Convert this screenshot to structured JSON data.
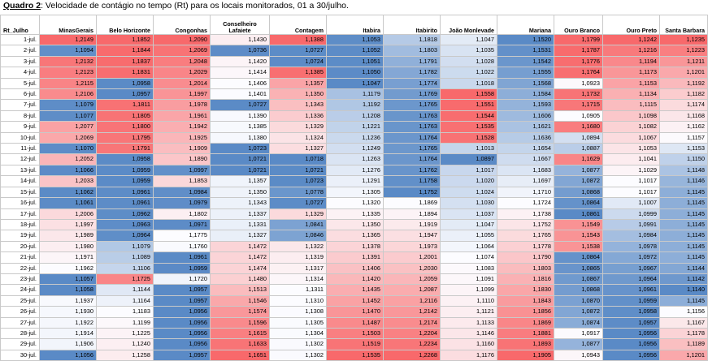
{
  "title": {
    "prefix": "Quadro 2",
    "text": ": Velocidade de contágio no tempo (Rt) para os locais monitorados,  01 a 30/julho."
  },
  "table": {
    "row_header": "Rt_Julho",
    "columns": [
      "MinasGerais",
      "Belo Horizonte",
      "Congonhas",
      "Conselheiro Lafaiete",
      "Contagem",
      "Itabira",
      "Itabirito",
      "João Monlevade",
      "Mariana",
      "Ouro Branco",
      "Ouro Preto",
      "Santa Barbara"
    ],
    "rows": [
      {
        "label": "1-jul.",
        "values": [
          "1,2149",
          "1,1852",
          "1,2090",
          "1,1430",
          "1,1388",
          "1,1053",
          "1,1818",
          "1,1047",
          "1,1520",
          "1,1799",
          "1,1242",
          "1,1235"
        ]
      },
      {
        "label": "2-jul.",
        "values": [
          "1,1094",
          "1,1844",
          "1,2069",
          "1,0736",
          "1,0727",
          "1,1052",
          "1,1803",
          "1,1035",
          "1,1531",
          "1,1787",
          "1,1216",
          "1,1223"
        ]
      },
      {
        "label": "3-jul.",
        "values": [
          "1,2132",
          "1,1837",
          "1,2048",
          "1,1420",
          "1,0724",
          "1,1051",
          "1,1791",
          "1,1028",
          "1,1542",
          "1,1776",
          "1,1194",
          "1,1211"
        ]
      },
      {
        "label": "4-jul.",
        "values": [
          "1,2123",
          "1,1831",
          "1,2029",
          "1,1414",
          "1,1385",
          "1,1050",
          "1,1782",
          "1,1022",
          "1,1555",
          "1,1764",
          "1,1173",
          "1,1201"
        ]
      },
      {
        "label": "5-jul.",
        "values": [
          "1,2115",
          "1,0958",
          "1,2014",
          "1,1406",
          "1,1357",
          "1,1047",
          "1,1774",
          "1,1018",
          "1,1568",
          "1,0923",
          "1,1153",
          "1,1192"
        ]
      },
      {
        "label": "6-jul.",
        "values": [
          "1,2106",
          "1,0957",
          "1,1997",
          "1,1401",
          "1,1350",
          "1,1179",
          "1,1769",
          "1,1558",
          "1,1584",
          "1,1732",
          "1,1134",
          "1,1182"
        ]
      },
      {
        "label": "7-jul.",
        "values": [
          "1,1079",
          "1,1811",
          "1,1978",
          "1,0727",
          "1,1343",
          "1,1192",
          "1,1765",
          "1,1551",
          "1,1593",
          "1,1715",
          "1,1115",
          "1,1174"
        ]
      },
      {
        "label": "8-jul.",
        "values": [
          "1,1077",
          "1,1805",
          "1,1961",
          "1,1390",
          "1,1336",
          "1,1208",
          "1,1763",
          "1,1544",
          "1,1606",
          "1,0905",
          "1,1098",
          "1,1168"
        ]
      },
      {
        "label": "9-jul.",
        "values": [
          "1,2077",
          "1,1800",
          "1,1942",
          "1,1385",
          "1,1329",
          "1,1221",
          "1,1763",
          "1,1535",
          "1,1621",
          "1,1680",
          "1,1082",
          "1,1162"
        ]
      },
      {
        "label": "10-jul.",
        "values": [
          "1,2069",
          "1,1795",
          "1,1925",
          "1,1380",
          "1,1324",
          "1,1236",
          "1,1764",
          "1,1528",
          "1,1636",
          "1,0894",
          "1,1067",
          "1,1157"
        ]
      },
      {
        "label": "11-jul.",
        "values": [
          "1,1070",
          "1,1791",
          "1,1909",
          "1,0723",
          "1,1327",
          "1,1249",
          "1,1765",
          "1,1013",
          "1,1654",
          "1,0887",
          "1,1053",
          "1,1153"
        ]
      },
      {
        "label": "12-jul.",
        "values": [
          "1,2052",
          "1,0958",
          "1,1890",
          "1,0721",
          "1,0718",
          "1,1263",
          "1,1764",
          "1,0897",
          "1,1667",
          "1,1629",
          "1,1041",
          "1,1150"
        ]
      },
      {
        "label": "13-jul.",
        "values": [
          "1,1066",
          "1,0959",
          "1,0997",
          "1,0721",
          "1,0721",
          "1,1276",
          "1,1762",
          "1,1017",
          "1,1683",
          "1,0877",
          "1,1029",
          "1,1148"
        ]
      },
      {
        "label": "14-jul.",
        "values": [
          "1,2033",
          "1,0959",
          "1,1853",
          "1,1357",
          "1,0723",
          "1,1291",
          "1,1758",
          "1,1020",
          "1,1697",
          "1,0872",
          "1,1017",
          "1,1146"
        ]
      },
      {
        "label": "15-jul.",
        "values": [
          "1,1062",
          "1,0961",
          "1,0984",
          "1,1350",
          "1,0778",
          "1,1305",
          "1,1752",
          "1,1024",
          "1,1710",
          "1,0868",
          "1,1017",
          "1,1145"
        ]
      },
      {
        "label": "16-jul.",
        "values": [
          "1,1061",
          "1,0961",
          "1,0979",
          "1,1343",
          "1,0727",
          "1,1320",
          "1,1869",
          "1,1030",
          "1,1724",
          "1,0864",
          "1,1007",
          "1,1145"
        ]
      },
      {
        "label": "17-jul.",
        "values": [
          "1,2006",
          "1,0962",
          "1,1802",
          "1,1337",
          "1,1329",
          "1,1335",
          "1,1894",
          "1,1037",
          "1,1738",
          "1,0861",
          "1,0999",
          "1,1145"
        ]
      },
      {
        "label": "18-jul.",
        "values": [
          "1,1997",
          "1,0963",
          "1,0971",
          "1,1331",
          "1,0841",
          "1,1350",
          "1,1919",
          "1,1047",
          "1,1752",
          "1,1549",
          "1,0991",
          "1,1145"
        ]
      },
      {
        "label": "19-jul.",
        "values": [
          "1,1989",
          "1,0964",
          "1,1775",
          "1,1327",
          "1,0846",
          "1,1365",
          "1,1947",
          "1,1055",
          "1,1765",
          "1,1543",
          "1,0984",
          "1,1145"
        ]
      },
      {
        "label": "20-jul.",
        "values": [
          "1,1980",
          "1,1079",
          "1,1760",
          "1,1472",
          "1,1322",
          "1,1378",
          "1,1973",
          "1,1064",
          "1,1778",
          "1,1538",
          "1,0978",
          "1,1145"
        ]
      },
      {
        "label": "21-jul.",
        "values": [
          "1,1971",
          "1,1089",
          "1,0961",
          "1,1472",
          "1,1319",
          "1,1391",
          "1,2001",
          "1,1074",
          "1,1790",
          "1,0864",
          "1,0972",
          "1,1145"
        ]
      },
      {
        "label": "22-jul.",
        "values": [
          "1,1962",
          "1,1106",
          "1,0959",
          "1,1474",
          "1,1317",
          "1,1406",
          "1,2030",
          "1,1083",
          "1,1803",
          "1,0865",
          "1,0967",
          "1,1144"
        ]
      },
      {
        "label": "23-jul.",
        "values": [
          "1,1057",
          "1,1725",
          "1,1720",
          "1,1480",
          "1,1314",
          "1,1420",
          "1,2059",
          "1,1091",
          "1,1816",
          "1,0867",
          "1,0964",
          "1,1142"
        ]
      },
      {
        "label": "24-jul.",
        "values": [
          "1,1058",
          "1,1144",
          "1,0957",
          "1,1513",
          "1,1311",
          "1,1435",
          "1,2087",
          "1,1099",
          "1,1830",
          "1,0868",
          "1,0961",
          "1,1140"
        ]
      },
      {
        "label": "25-jul.",
        "values": [
          "1,1937",
          "1,1164",
          "1,0957",
          "1,1546",
          "1,1310",
          "1,1452",
          "1,2116",
          "1,1110",
          "1,1843",
          "1,0870",
          "1,0959",
          "1,1145"
        ]
      },
      {
        "label": "26-jul.",
        "values": [
          "1,1930",
          "1,1183",
          "1,0956",
          "1,1574",
          "1,1308",
          "1,1470",
          "1,2142",
          "1,1121",
          "1,1856",
          "1,0872",
          "1,0958",
          "1,1156"
        ]
      },
      {
        "label": "27-jul.",
        "values": [
          "1,1922",
          "1,1199",
          "1,0956",
          "1,1596",
          "1,1305",
          "1,1487",
          "1,2174",
          "1,1133",
          "1,1869",
          "1,0874",
          "1,0957",
          "1,1167"
        ]
      },
      {
        "label": "28-jul.",
        "values": [
          "1,1914",
          "1,1225",
          "1,0956",
          "1,1615",
          "1,1304",
          "1,1503",
          "1,2204",
          "1,1146",
          "1,1881",
          "1,0917",
          "1,0956",
          "1,1178"
        ]
      },
      {
        "label": "29-jul.",
        "values": [
          "1,1906",
          "1,1240",
          "1,0956",
          "1,1633",
          "1,1302",
          "1,1519",
          "1,2234",
          "1,1160",
          "1,1893",
          "1,0877",
          "1,0956",
          "1,1189"
        ]
      },
      {
        "label": "30-jul.",
        "values": [
          "1,1056",
          "1,1258",
          "1,0957",
          "1,1651",
          "1,1302",
          "1,1535",
          "1,2268",
          "1,1176",
          "1,1905",
          "1,0943",
          "1,0956",
          "1,1201"
        ]
      }
    ]
  },
  "colors": {
    "high": "#f8696b",
    "mid": "#fcfcff",
    "low": "#5a8ac6"
  }
}
